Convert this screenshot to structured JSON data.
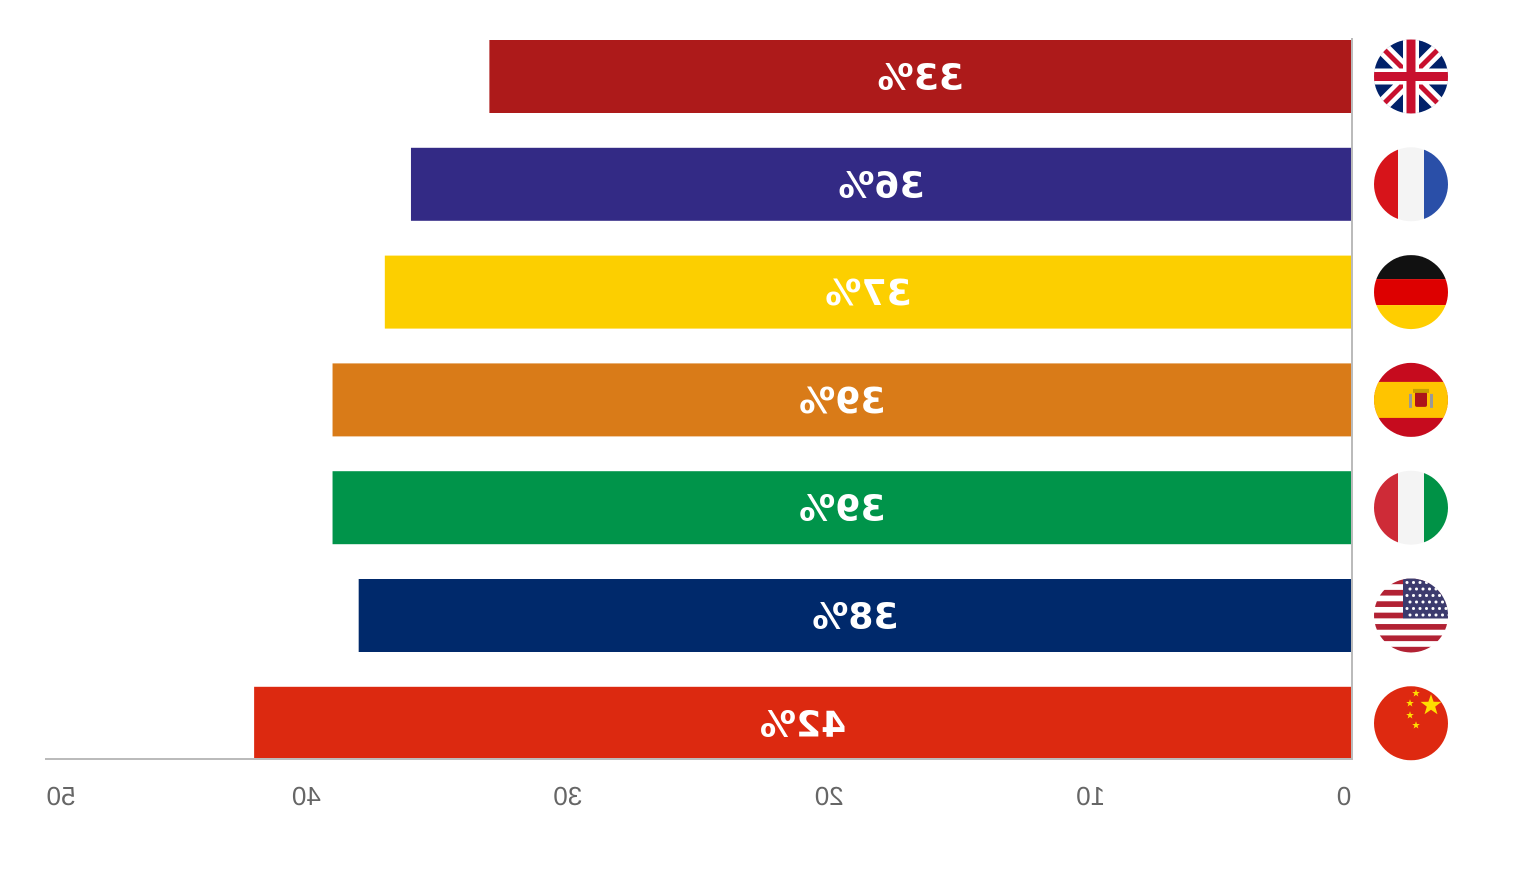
{
  "chart_data": {
    "type": "bar",
    "orientation": "horizontal",
    "mirrored": true,
    "categories": [
      "United Kingdom",
      "France",
      "Germany",
      "Spain",
      "Italy",
      "United States",
      "China"
    ],
    "flag_icons": [
      "uk-flag-icon",
      "france-flag-icon",
      "germany-flag-icon",
      "spain-flag-icon",
      "italy-flag-icon",
      "usa-flag-icon",
      "china-flag-icon"
    ],
    "values": [
      33,
      36,
      37,
      39,
      39,
      38,
      42
    ],
    "value_labels": [
      "33%",
      "36%",
      "37%",
      "39%",
      "39%",
      "38%",
      "42%"
    ],
    "colors": [
      "#AD1A1A",
      "#332A85",
      "#FCCF00",
      "#D97B18",
      "#00944A",
      "#00296B",
      "#DC2910"
    ],
    "xlim": [
      0,
      50
    ],
    "x_ticks": [
      0,
      10,
      20,
      30,
      40,
      50
    ],
    "x_tick_labels": [
      "0",
      "10",
      "20",
      "30",
      "40",
      "50"
    ],
    "grid": false,
    "legend": "none"
  }
}
